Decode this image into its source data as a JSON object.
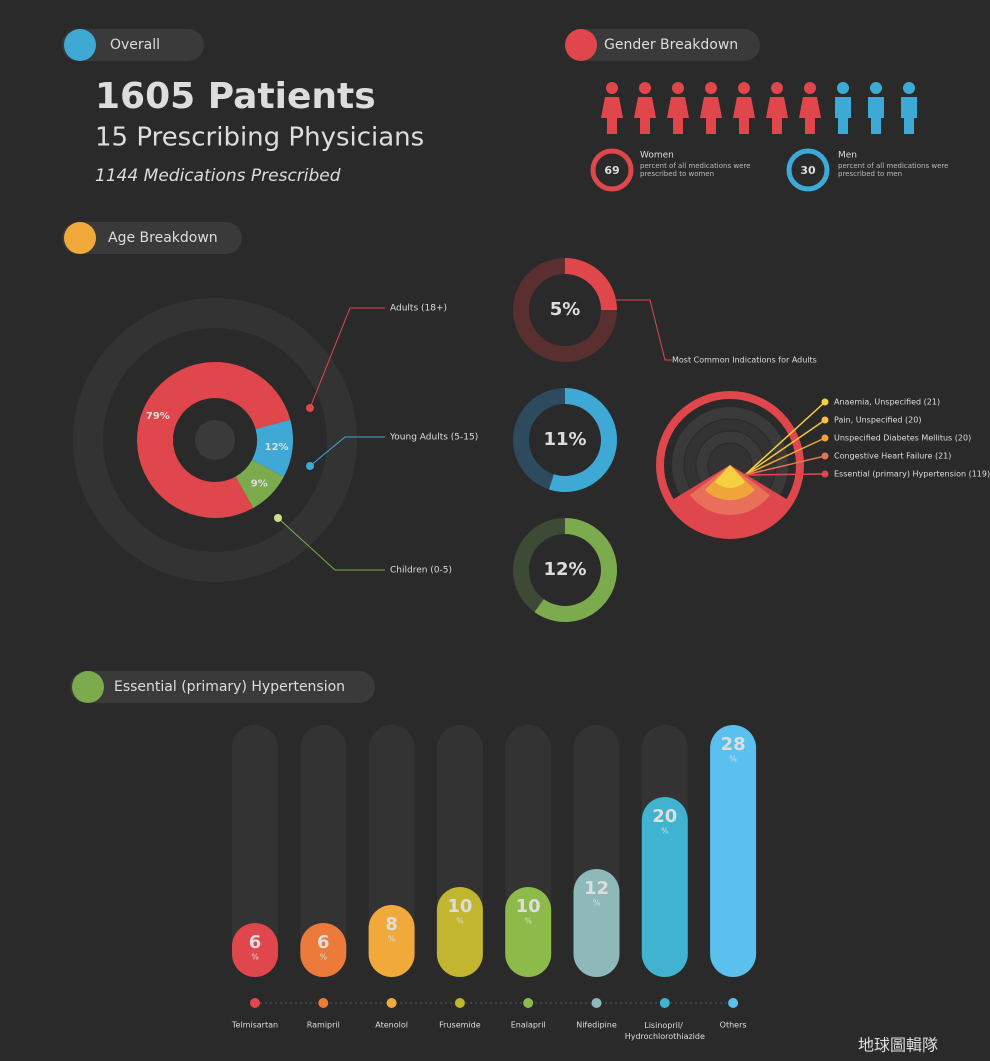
{
  "overall": {
    "title": "Overall",
    "patients": "1605 Patients",
    "physicians": "15 Prescribing Physicians",
    "medications": "1144 Medications Prescribed"
  },
  "gender": {
    "title": "Gender Breakdown",
    "icons": {
      "women": 7,
      "men": 3,
      "women_color": "#e0474c",
      "men_color": "#3fa9d6"
    },
    "women": {
      "value": 69,
      "label": "Women",
      "text": "percent of all medications were prescribed to women"
    },
    "men": {
      "value": 30,
      "label": "Men",
      "text": "percent of all medications were prescribed to men"
    }
  },
  "indications": {
    "title": "Most Common Indications for Adults",
    "items": [
      {
        "label": "Anaemia, Unspecified (21)",
        "color": "#f5d142"
      },
      {
        "label": "Pain, Unspecified (20)",
        "color": "#f5c342"
      },
      {
        "label": "Unspecified Diabetes Mellitus (20)",
        "color": "#f0a53a"
      },
      {
        "label": "Congestive Heart Failure (21)",
        "color": "#e8705a"
      },
      {
        "label": "Essential (primary) Hypertension (119)",
        "color": "#e0474c"
      }
    ]
  },
  "chart_data": [
    {
      "type": "donut",
      "title": "Age Breakdown",
      "categories": [
        "Adults (18+)",
        "Young Adults (5-15)",
        "Children (0-5)"
      ],
      "values": [
        79,
        12,
        9
      ],
      "value_labels": [
        "79%",
        "12%",
        "9%"
      ],
      "colors": [
        "#e0474c",
        "#3fa9d6",
        "#7cab4e"
      ]
    },
    {
      "type": "gauge",
      "categories": [
        "Adults (18+)",
        "Young Adults (5-15)",
        "Children (0-5)"
      ],
      "values": [
        5,
        11,
        12
      ],
      "value_labels": [
        "5%",
        "11%",
        "12%"
      ],
      "colors": [
        "#e0474c",
        "#3fa9d6",
        "#7cab4e"
      ],
      "track_colors": [
        "#5a2f2f",
        "#2e4a5e",
        "#3c4a36"
      ]
    },
    {
      "type": "bar",
      "title": "Essential (primary) Hypertension",
      "categories": [
        "Telmisartan",
        "Ramipril",
        "Atenolol",
        "Frusemide",
        "Enalapril",
        "Nifedipine",
        "Lisinopril/ Hydrochlorothiazide",
        "Others"
      ],
      "values": [
        6,
        6,
        8,
        10,
        10,
        12,
        20,
        28
      ],
      "unit": "%",
      "colors": [
        "#e0474c",
        "#ec7a3a",
        "#f2a93b",
        "#c2b530",
        "#8dbb4a",
        "#8fb8b8",
        "#3fb3cf",
        "#5bc0ee"
      ],
      "ylim": [
        0,
        28
      ]
    }
  ],
  "watermark": "地球圖輯隊"
}
